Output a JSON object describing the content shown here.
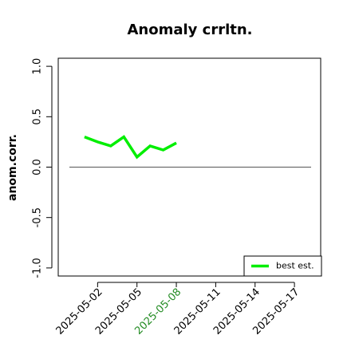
{
  "chart_data": {
    "type": "line",
    "title": "Anomaly crrltn.",
    "y_label": "anom.corr.",
    "x": [
      "2025-05-01",
      "2025-05-02",
      "2025-05-03",
      "2025-05-04",
      "2025-05-05",
      "2025-05-06",
      "2025-05-07",
      "2025-05-08"
    ],
    "series": [
      {
        "name": "best est.",
        "color": "#00ee00",
        "values": [
          0.3,
          0.25,
          0.21,
          0.3,
          0.1,
          0.21,
          0.17,
          0.24
        ]
      }
    ],
    "xlim": [
      "2025-04-29",
      "2025-05-19"
    ],
    "xticks": [
      "2025-05-02",
      "2025-05-05",
      "2025-05-08",
      "2025-05-11",
      "2025-05-14",
      "2025-05-17"
    ],
    "highlighted_xtick": 2,
    "highlight_color": "#228b22",
    "ylim": [
      -1.08,
      1.08
    ],
    "yticks": [
      -1.0,
      -0.5,
      0.0,
      0.5,
      1.0
    ],
    "yticks_labels_fixed": true,
    "hline": 0,
    "legend": "bottom-right"
  }
}
